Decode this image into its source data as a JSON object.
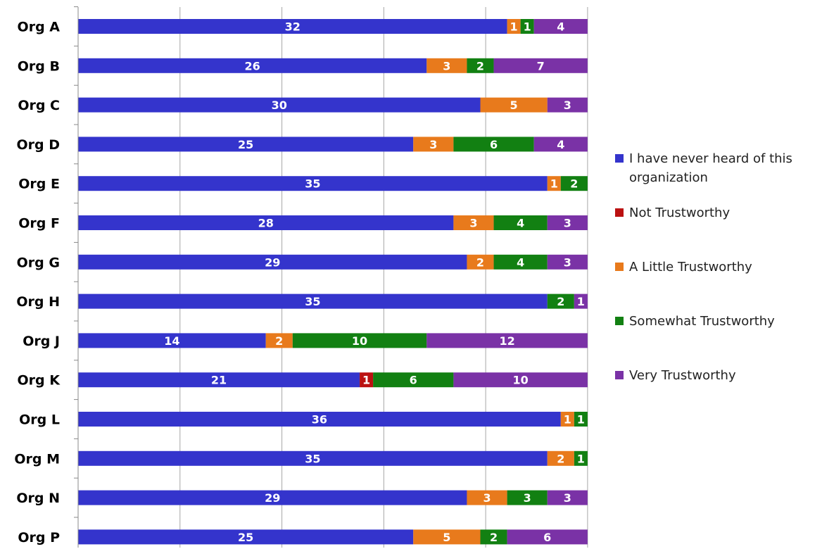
{
  "chart_data": {
    "type": "bar",
    "orientation": "horizontal",
    "stacked": true,
    "categories": [
      "Org A",
      "Org B",
      "Org C",
      "Org D",
      "Org E",
      "Org F",
      "Org G",
      "Org H",
      "Org J",
      "Org K",
      "Org L",
      "Org M",
      "Org N",
      "Org P"
    ],
    "series": [
      {
        "name": "I have never heard of this organization",
        "color": "#3434cc",
        "values": [
          32,
          26,
          30,
          25,
          35,
          28,
          29,
          35,
          14,
          21,
          36,
          35,
          29,
          25
        ]
      },
      {
        "name": "Not Trustworthy",
        "color": "#bb1111",
        "values": [
          0,
          0,
          0,
          0,
          0,
          0,
          0,
          0,
          0,
          1,
          0,
          0,
          0,
          0
        ]
      },
      {
        "name": "A Little Trustworthy",
        "color": "#e87a1c",
        "values": [
          1,
          3,
          5,
          3,
          1,
          3,
          2,
          0,
          2,
          0,
          1,
          2,
          3,
          5
        ]
      },
      {
        "name": "Somewhat Trustworthy",
        "color": "#128012",
        "values": [
          1,
          2,
          0,
          6,
          2,
          4,
          4,
          2,
          10,
          6,
          1,
          1,
          3,
          2
        ]
      },
      {
        "name": "Very Trustworthy",
        "color": "#7a32a6",
        "values": [
          4,
          7,
          3,
          4,
          0,
          3,
          3,
          1,
          12,
          10,
          0,
          0,
          3,
          6
        ]
      }
    ],
    "xlim": [
      0,
      38
    ],
    "grid": true,
    "legend_position": "right"
  }
}
